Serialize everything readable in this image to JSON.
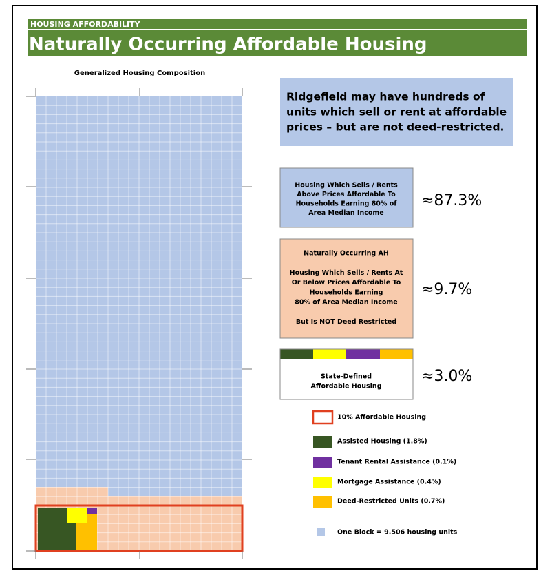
{
  "header": {
    "kicker": "HOUSING AFFORDABILITY",
    "title": "Naturally Occurring Affordable Housing"
  },
  "chart": {
    "title": "Generalized Housing Composition"
  },
  "callout": {
    "lines": [
      "Ridgefield may have hundreds of",
      "units which sell or rent at affordable",
      "prices – but are not deed-restricted."
    ]
  },
  "boxes": [
    {
      "lines": [
        "Housing Which Sells / Rents",
        "Above Prices Affordable To",
        "Households Earning 80% of",
        "Area Median Income"
      ],
      "value": "≈87.3%"
    },
    {
      "lines": [
        "Naturally Occurring AH",
        "",
        "Housing Which Sells / Rents At",
        "Or Below Prices Affordable To",
        "Households Earning",
        "80% of Area Median Income",
        "",
        "But Is NOT Deed Restricted"
      ],
      "value": "≈9.7%"
    },
    {
      "lines": [
        "State-Defined",
        "Affordable Housing"
      ],
      "value": "≈3.0%"
    }
  ],
  "legend": [
    "10% Affordable Housing",
    "Assisted Housing (1.8%)",
    "Tenant Rental Assistance (0.1%)",
    "Mortgage Assistance (0.4%)",
    "Deed-Restricted Units (0.7%)",
    "One Block = 9.506 housing units"
  ]
}
